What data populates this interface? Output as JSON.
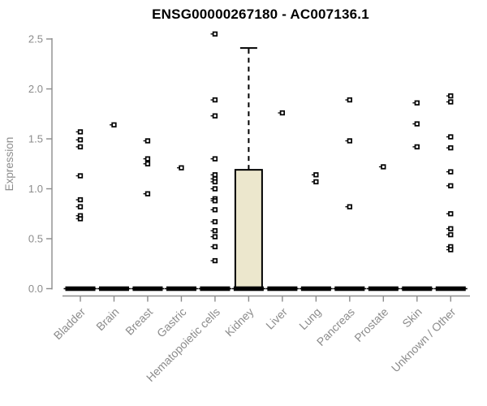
{
  "chart_data": {
    "type": "box",
    "title": "ENSG00000267180 - AC007136.1",
    "ylabel": "Expression",
    "xlabel": "",
    "ylim": [
      0,
      2.5
    ],
    "yticks": [
      0,
      0.5,
      1,
      1.5,
      2,
      2.5
    ],
    "grid": false,
    "legend": null,
    "categories": [
      "Bladder",
      "Brain",
      "Breast",
      "Gastric",
      "Hematopoietic cells",
      "Kidney",
      "Liver",
      "Lung",
      "Pancreas",
      "Prostate",
      "Skin",
      "Unknown / Other"
    ],
    "groups": [
      {
        "name": "Bladder",
        "median": 0,
        "box": null,
        "outliers": [
          1.57,
          1.49,
          1.42,
          1.13,
          0.89,
          0.82,
          0.73,
          0.7
        ]
      },
      {
        "name": "Brain",
        "median": 0,
        "box": null,
        "outliers": [
          1.64
        ]
      },
      {
        "name": "Breast",
        "median": 0,
        "box": null,
        "outliers": [
          1.48,
          1.3,
          1.25,
          0.95
        ]
      },
      {
        "name": "Gastric",
        "median": 0,
        "box": null,
        "outliers": [
          1.21
        ]
      },
      {
        "name": "Hematopoietic cells",
        "median": 0,
        "box": null,
        "outliers": [
          2.55,
          1.89,
          1.73,
          1.3,
          1.14,
          1.1,
          1.07,
          1.0,
          0.9,
          0.88,
          0.79,
          0.67,
          0.58,
          0.52,
          0.42,
          0.28
        ]
      },
      {
        "name": "Kidney",
        "median": 0,
        "box": {
          "q1": 0,
          "q3": 1.19,
          "whisker_high": 2.41
        },
        "outliers": []
      },
      {
        "name": "Liver",
        "median": 0,
        "box": null,
        "outliers": [
          1.76
        ]
      },
      {
        "name": "Lung",
        "median": 0,
        "box": null,
        "outliers": [
          1.14,
          1.07
        ]
      },
      {
        "name": "Pancreas",
        "median": 0,
        "box": null,
        "outliers": [
          1.89,
          1.48,
          0.82
        ]
      },
      {
        "name": "Prostate",
        "median": 0,
        "box": null,
        "outliers": [
          1.22
        ]
      },
      {
        "name": "Skin",
        "median": 0,
        "box": null,
        "outliers": [
          1.86,
          1.65,
          1.42
        ]
      },
      {
        "name": "Unknown / Other",
        "median": 0,
        "box": null,
        "outliers": [
          1.93,
          1.87,
          1.52,
          1.41,
          1.17,
          1.03,
          0.75,
          0.6,
          0.54,
          0.42,
          0.39
        ]
      }
    ],
    "colors": {
      "background": "#FFFFFF",
      "box_fill": "#ECE7CD",
      "box_stroke": "#000000",
      "median": "#000000",
      "marker": "#000000",
      "axis": "#8C8C8C",
      "tick_label": "#8C8C8C",
      "title": "#000000"
    }
  }
}
